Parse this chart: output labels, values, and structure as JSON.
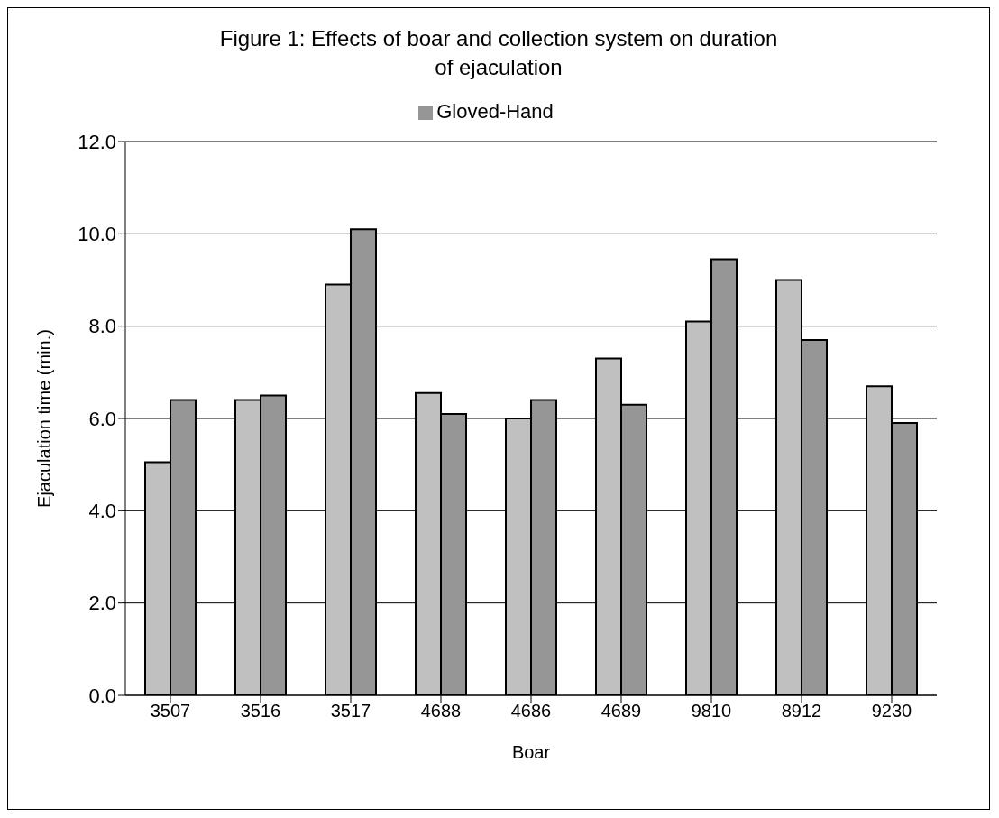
{
  "chart_data": {
    "type": "bar",
    "title": "Figure 1: Effects of boar and collection system on duration of ejaculation",
    "xlabel": "Boar",
    "ylabel": "Ejaculation time (min.)",
    "categories": [
      "3507",
      "3516",
      "3517",
      "4688",
      "4686",
      "4689",
      "9810",
      "8912",
      "9230"
    ],
    "series": [
      {
        "color": "#c0c0c0",
        "values": [
          5.05,
          6.4,
          8.9,
          6.55,
          6.0,
          7.3,
          8.1,
          9.0,
          6.7
        ]
      },
      {
        "name": "Gloved-Hand",
        "color": "#969696",
        "values": [
          6.4,
          6.5,
          10.1,
          6.1,
          6.4,
          6.3,
          9.45,
          7.7,
          5.9
        ]
      }
    ],
    "ylim": [
      0,
      12
    ],
    "yticks": [
      {
        "value": 0,
        "label": "0.0"
      },
      {
        "value": 2,
        "label": "2.0"
      },
      {
        "value": 4,
        "label": "4.0"
      },
      {
        "value": 6,
        "label": "6.0"
      },
      {
        "value": 8,
        "label": "8.0"
      },
      {
        "value": 10,
        "label": "10.0"
      },
      {
        "value": 12,
        "label": "12.0"
      }
    ],
    "grid": "y",
    "legend": "top"
  }
}
